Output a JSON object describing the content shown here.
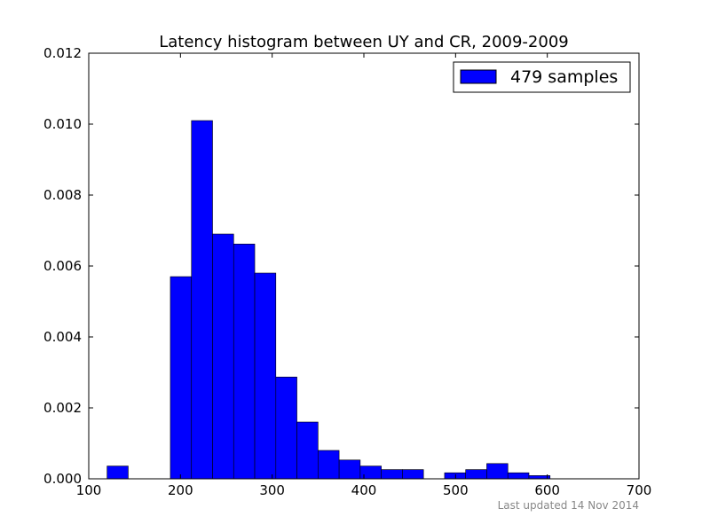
{
  "chart_data": {
    "type": "bar",
    "title": "Latency histogram between UY and CR, 2009-2009",
    "xlabel": "",
    "ylabel": "",
    "xlim": [
      100,
      700
    ],
    "ylim": [
      0,
      0.012
    ],
    "x_ticks": [
      "100",
      "200",
      "300",
      "400",
      "500",
      "600",
      "700"
    ],
    "y_ticks": [
      "0.000",
      "0.002",
      "0.004",
      "0.006",
      "0.008",
      "0.010",
      "0.012"
    ],
    "x_tick_values": [
      100,
      200,
      300,
      400,
      500,
      600,
      700
    ],
    "y_tick_values": [
      0,
      0.002,
      0.004,
      0.006,
      0.008,
      0.01,
      0.012
    ],
    "legend_position": "top-right",
    "grid": false,
    "bar_color": "#0000ff",
    "bins": [
      {
        "x0": 120,
        "x1": 143,
        "value": 0.00036
      },
      {
        "x0": 143,
        "x1": 166,
        "value": 0
      },
      {
        "x0": 166,
        "x1": 189,
        "value": 0
      },
      {
        "x0": 189,
        "x1": 212,
        "value": 0.0057
      },
      {
        "x0": 212,
        "x1": 235,
        "value": 0.0101
      },
      {
        "x0": 235,
        "x1": 258,
        "value": 0.0069
      },
      {
        "x0": 258,
        "x1": 281,
        "value": 0.00662
      },
      {
        "x0": 281,
        "x1": 304,
        "value": 0.0058
      },
      {
        "x0": 304,
        "x1": 327,
        "value": 0.00287
      },
      {
        "x0": 327,
        "x1": 350,
        "value": 0.0016
      },
      {
        "x0": 350,
        "x1": 373,
        "value": 0.0008
      },
      {
        "x0": 373,
        "x1": 396,
        "value": 0.00053
      },
      {
        "x0": 396,
        "x1": 419,
        "value": 0.00036
      },
      {
        "x0": 419,
        "x1": 442,
        "value": 0.00026
      },
      {
        "x0": 442,
        "x1": 465,
        "value": 0.00026
      },
      {
        "x0": 465,
        "x1": 488,
        "value": 0
      },
      {
        "x0": 488,
        "x1": 511,
        "value": 0.00017
      },
      {
        "x0": 511,
        "x1": 534,
        "value": 0.00026
      },
      {
        "x0": 534,
        "x1": 557,
        "value": 0.00043
      },
      {
        "x0": 557,
        "x1": 580,
        "value": 0.00017
      },
      {
        "x0": 580,
        "x1": 603,
        "value": 9e-05
      }
    ],
    "series": [
      {
        "name": "479 samples"
      }
    ]
  },
  "footnote": "Last updated 14 Nov 2014"
}
